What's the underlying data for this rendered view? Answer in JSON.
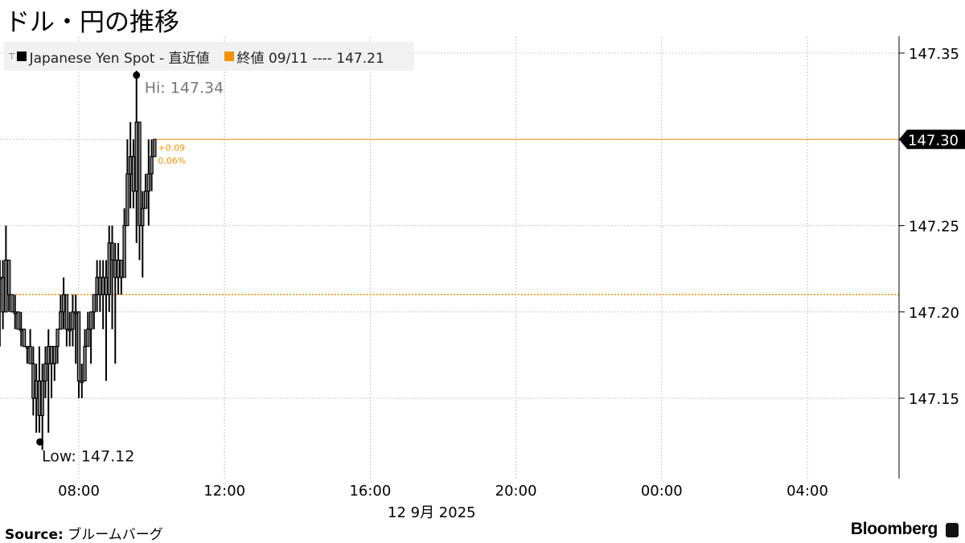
{
  "title": "ドル・円の推移",
  "legend": {
    "series_label": "Japanese Yen Spot - 直近値",
    "series_color": "#000000",
    "ref_label": "終値 09/11 ---- 147.21",
    "ref_color": "#f39200"
  },
  "source": {
    "label": "Source:",
    "text": "ブルームバーグ"
  },
  "brand": "Bloomberg",
  "chart_data": {
    "type": "line",
    "title": "ドル・円の推移",
    "date_label": "12 9月 2025",
    "x_ticks": [
      "08:00",
      "12:00",
      "16:00",
      "20:00",
      "00:00",
      "04:00"
    ],
    "y_ticks": [
      "147.35",
      "147.30",
      "147.25",
      "147.20",
      "147.15"
    ],
    "ylim": [
      147.1,
      147.36
    ],
    "xlim": [
      "05:50",
      "06:40+1"
    ],
    "grid": true,
    "legend_position": "top-left",
    "axis_side": "right",
    "previous_close": 147.21,
    "last_price": "147.30",
    "change": "+0.09",
    "change_pct": "0.06%",
    "high_label": "Hi: 147.34",
    "low_label": "Low: 147.12",
    "high": {
      "time": "09:35",
      "value": 147.34
    },
    "low": {
      "time": "07:00",
      "value": 147.12
    },
    "series": [
      {
        "name": "Japanese Yen Spot - 直近値",
        "times": [
          "05:50",
          "05:55",
          "06:00",
          "06:05",
          "06:10",
          "06:15",
          "06:20",
          "06:25",
          "06:30",
          "06:35",
          "06:40",
          "06:45",
          "06:50",
          "06:55",
          "07:00",
          "07:05",
          "07:10",
          "07:15",
          "07:20",
          "07:25",
          "07:30",
          "07:35",
          "07:40",
          "07:45",
          "07:50",
          "07:55",
          "08:00",
          "08:05",
          "08:10",
          "08:15",
          "08:20",
          "08:25",
          "08:30",
          "08:35",
          "08:40",
          "08:45",
          "08:50",
          "08:55",
          "09:00",
          "09:05",
          "09:10",
          "09:15",
          "09:20",
          "09:25",
          "09:30",
          "09:35",
          "09:40",
          "09:45",
          "09:50",
          "09:55",
          "10:00",
          "10:05"
        ],
        "hlc": [
          [
            147.23,
            147.18,
            147.22
          ],
          [
            147.23,
            147.19,
            147.2
          ],
          [
            147.25,
            147.2,
            147.23
          ],
          [
            147.22,
            147.2,
            147.21
          ],
          [
            147.21,
            147.2,
            147.2
          ],
          [
            147.21,
            147.19,
            147.2
          ],
          [
            147.2,
            147.19,
            147.19
          ],
          [
            147.2,
            147.18,
            147.19
          ],
          [
            147.19,
            147.18,
            147.18
          ],
          [
            147.18,
            147.17,
            147.18
          ],
          [
            147.19,
            147.17,
            147.17
          ],
          [
            147.18,
            147.14,
            147.15
          ],
          [
            147.17,
            147.13,
            147.16
          ],
          [
            147.18,
            147.13,
            147.14
          ],
          [
            147.17,
            147.12,
            147.16
          ],
          [
            147.18,
            147.15,
            147.17
          ],
          [
            147.19,
            147.13,
            147.18
          ],
          [
            147.18,
            147.15,
            147.17
          ],
          [
            147.18,
            147.16,
            147.18
          ],
          [
            147.19,
            147.17,
            147.19
          ],
          [
            147.21,
            147.19,
            147.2
          ],
          [
            147.22,
            147.19,
            147.21
          ],
          [
            147.21,
            147.18,
            147.19
          ],
          [
            147.2,
            147.18,
            147.19
          ],
          [
            147.21,
            147.18,
            147.2
          ],
          [
            147.21,
            147.17,
            147.2
          ],
          [
            147.2,
            147.15,
            147.16
          ],
          [
            147.17,
            147.15,
            147.16
          ],
          [
            147.19,
            147.16,
            147.18
          ],
          [
            147.2,
            147.18,
            147.19
          ],
          [
            147.2,
            147.17,
            147.2
          ],
          [
            147.21,
            147.19,
            147.21
          ],
          [
            147.23,
            147.2,
            147.22
          ],
          [
            147.23,
            147.2,
            147.21
          ],
          [
            147.23,
            147.19,
            147.22
          ],
          [
            147.23,
            147.16,
            147.21
          ],
          [
            147.25,
            147.2,
            147.24
          ],
          [
            147.25,
            147.19,
            147.23
          ],
          [
            147.24,
            147.17,
            147.22
          ],
          [
            147.24,
            147.21,
            147.23
          ],
          [
            147.23,
            147.21,
            147.22
          ],
          [
            147.26,
            147.23,
            147.25
          ],
          [
            147.3,
            147.25,
            147.28
          ],
          [
            147.31,
            147.26,
            147.29
          ],
          [
            147.3,
            147.26,
            147.27
          ],
          [
            147.34,
            147.24,
            147.31
          ],
          [
            147.31,
            147.23,
            147.25
          ],
          [
            147.27,
            147.22,
            147.26
          ],
          [
            147.28,
            147.26,
            147.27
          ],
          [
            147.3,
            147.25,
            147.28
          ],
          [
            147.3,
            147.27,
            147.29
          ],
          [
            147.3,
            147.29,
            147.3
          ]
        ]
      }
    ]
  }
}
